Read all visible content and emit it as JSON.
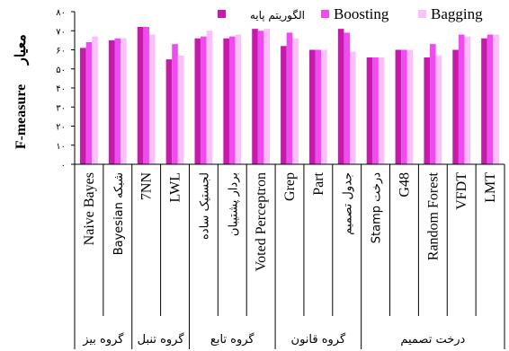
{
  "chart_data": {
    "type": "bar",
    "ylabel_main": "F-measure",
    "ylabel_fa": "معیار",
    "ylim": [
      0,
      80
    ],
    "yticks": [
      "۰",
      "۱۰",
      "۲۰",
      "۳۰",
      "۴۰",
      "۵۰",
      "۶۰",
      "۷۰",
      "۸۰"
    ],
    "ytick_values": [
      0,
      10,
      20,
      30,
      40,
      50,
      60,
      70,
      80
    ],
    "grid": false,
    "legend_position": "top",
    "series": [
      {
        "name": "الگوریتم پایه",
        "color": "#c41bab",
        "values": [
          61,
          65,
          72,
          55,
          66,
          66,
          71,
          62,
          60,
          71,
          56,
          60,
          56,
          60,
          66
        ]
      },
      {
        "name": "Boosting",
        "color": "#f04bf0",
        "values": [
          64,
          66,
          72,
          63,
          67,
          67,
          70,
          69,
          60,
          69,
          56,
          60,
          63,
          68,
          68
        ]
      },
      {
        "name": "Bagging",
        "color": "#fbc0fb",
        "values": [
          67,
          66,
          68,
          57,
          70,
          68,
          71,
          66,
          60,
          59,
          56,
          60,
          57,
          67,
          68
        ]
      }
    ],
    "categories": [
      "Naive Bayes",
      "Bayesian شبکه",
      "7NN",
      "LWL",
      "لجستیک ساده",
      "بردار پشتیبان",
      "Voted Perceptron",
      "Grep",
      "Part",
      "جدول تصمیم",
      "Stamp درخت",
      "G48",
      "Random Forest",
      "VFDT",
      "LMT"
    ],
    "groups": [
      {
        "label": "گروه بیز",
        "count": 2
      },
      {
        "label": "گروه تنبل",
        "count": 2
      },
      {
        "label": "گروه تابع",
        "count": 3
      },
      {
        "label": "گروه قانون",
        "count": 3
      },
      {
        "label": "درخت تصمیم",
        "count": 5
      }
    ]
  }
}
